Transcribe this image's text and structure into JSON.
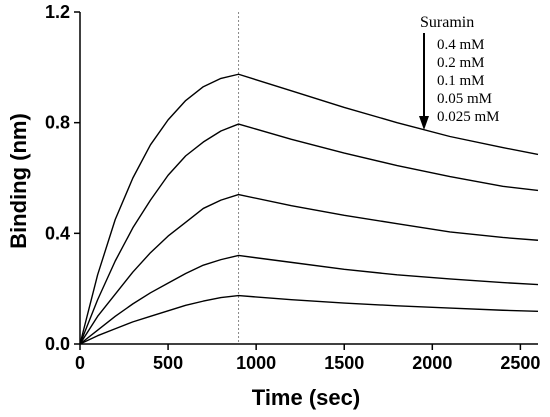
{
  "chart_data": {
    "type": "line",
    "title": "",
    "xlabel": "Time (sec)",
    "ylabel": "Binding (nm)",
    "xlim": [
      0,
      2600
    ],
    "ylim": [
      0,
      1.2
    ],
    "x_ticks": [
      0,
      500,
      1000,
      1500,
      2000,
      2500
    ],
    "y_ticks": [
      0.0,
      0.4,
      0.8,
      1.2
    ],
    "x_tick_labels": [
      "0",
      "500",
      "1000",
      "1500",
      "2000",
      "2500"
    ],
    "y_tick_labels": [
      "0.0",
      "0.4",
      "0.8",
      "1.2"
    ],
    "grid": false,
    "legend_title": "Suramin",
    "legend_placement": "top-right",
    "legend_entries": [
      "0.4 mM",
      "0.2 mM",
      "0.1 mM",
      "0.05 mM",
      "0.025 mM"
    ],
    "arrow_direction": "down",
    "dashed_vline_x": 900,
    "series": [
      {
        "name": "0.4 mM",
        "x": [
          0,
          100,
          200,
          300,
          400,
          500,
          600,
          700,
          800,
          900,
          1200,
          1500,
          1800,
          2100,
          2400,
          2600
        ],
        "y": [
          0,
          0.25,
          0.45,
          0.6,
          0.72,
          0.81,
          0.88,
          0.93,
          0.96,
          0.975,
          0.915,
          0.855,
          0.8,
          0.75,
          0.71,
          0.685
        ]
      },
      {
        "name": "0.2 mM",
        "x": [
          0,
          100,
          200,
          300,
          400,
          500,
          600,
          700,
          800,
          900,
          1200,
          1500,
          1800,
          2100,
          2400,
          2600
        ],
        "y": [
          0,
          0.16,
          0.3,
          0.42,
          0.52,
          0.61,
          0.68,
          0.73,
          0.77,
          0.795,
          0.74,
          0.69,
          0.645,
          0.605,
          0.57,
          0.555
        ]
      },
      {
        "name": "0.1 mM",
        "x": [
          0,
          100,
          200,
          300,
          400,
          500,
          600,
          700,
          800,
          900,
          1200,
          1500,
          1800,
          2100,
          2400,
          2600
        ],
        "y": [
          0,
          0.1,
          0.18,
          0.26,
          0.33,
          0.39,
          0.44,
          0.49,
          0.52,
          0.54,
          0.5,
          0.465,
          0.435,
          0.405,
          0.385,
          0.375
        ]
      },
      {
        "name": "0.05 mM",
        "x": [
          0,
          100,
          200,
          300,
          400,
          500,
          600,
          700,
          800,
          900,
          1200,
          1500,
          1800,
          2100,
          2400,
          2600
        ],
        "y": [
          0,
          0.05,
          0.1,
          0.145,
          0.185,
          0.22,
          0.255,
          0.285,
          0.305,
          0.32,
          0.295,
          0.27,
          0.25,
          0.235,
          0.222,
          0.215
        ]
      },
      {
        "name": "0.025 mM",
        "x": [
          0,
          100,
          200,
          300,
          400,
          500,
          600,
          700,
          800,
          900,
          1200,
          1500,
          1800,
          2100,
          2400,
          2600
        ],
        "y": [
          0,
          0.03,
          0.055,
          0.08,
          0.1,
          0.12,
          0.14,
          0.155,
          0.168,
          0.175,
          0.16,
          0.148,
          0.138,
          0.13,
          0.122,
          0.118
        ]
      }
    ]
  }
}
